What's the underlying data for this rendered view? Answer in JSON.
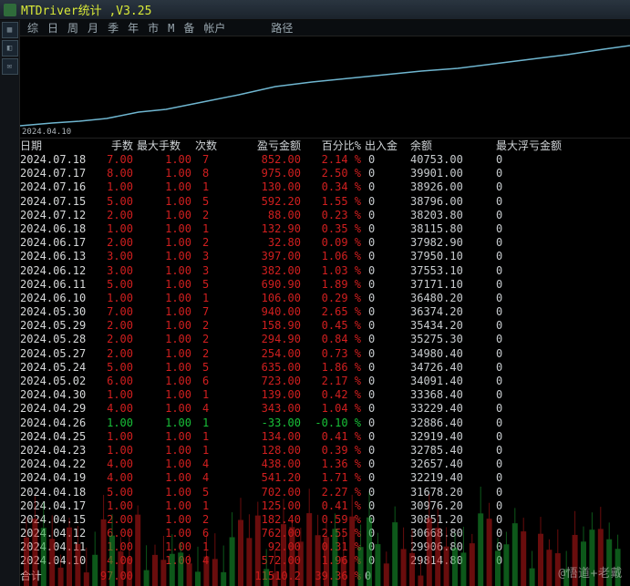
{
  "window": {
    "title": "MTDriver统计 ,V3.25"
  },
  "tabs": [
    "综",
    "日",
    "周",
    "月",
    "季",
    "年",
    "市",
    "M",
    "备",
    "帐户",
    "",
    "",
    "",
    "路径"
  ],
  "chart": {
    "xlabel": "2024.04.10",
    "line_color": "#6fb6d0",
    "line_width": 1.5,
    "background": "#000000",
    "points": [
      [
        0,
        98
      ],
      [
        35,
        95
      ],
      [
        65,
        93
      ],
      [
        95,
        90
      ],
      [
        130,
        83
      ],
      [
        160,
        80
      ],
      [
        200,
        72
      ],
      [
        240,
        64
      ],
      [
        280,
        55
      ],
      [
        320,
        50
      ],
      [
        360,
        46
      ],
      [
        400,
        42
      ],
      [
        440,
        38
      ],
      [
        480,
        35
      ],
      [
        520,
        30
      ],
      [
        560,
        25
      ],
      [
        600,
        20
      ],
      [
        640,
        14
      ],
      [
        669,
        10
      ]
    ]
  },
  "columns": [
    "日期",
    "手数",
    "最大手数",
    "次数",
    "盈亏金额",
    "百分比%",
    "出入金",
    "余额",
    "最大浮亏金额"
  ],
  "colors": {
    "red": "#d11f1f",
    "green": "#18c038",
    "text": "#d6d8d9",
    "bg": "#000000"
  },
  "rows": [
    {
      "date": "2024.07.18",
      "lots": "7.00",
      "maxlots": "1.00",
      "cnt": "7",
      "pl": "852.00",
      "pct": "2.14 %",
      "io": "0",
      "bal": "40753.00",
      "fl": "0",
      "neg": false
    },
    {
      "date": "2024.07.17",
      "lots": "8.00",
      "maxlots": "1.00",
      "cnt": "8",
      "pl": "975.00",
      "pct": "2.50 %",
      "io": "0",
      "bal": "39901.00",
      "fl": "0",
      "neg": false
    },
    {
      "date": "2024.07.16",
      "lots": "1.00",
      "maxlots": "1.00",
      "cnt": "1",
      "pl": "130.00",
      "pct": "0.34 %",
      "io": "0",
      "bal": "38926.00",
      "fl": "0",
      "neg": false
    },
    {
      "date": "2024.07.15",
      "lots": "5.00",
      "maxlots": "1.00",
      "cnt": "5",
      "pl": "592.20",
      "pct": "1.55 %",
      "io": "0",
      "bal": "38796.00",
      "fl": "0",
      "neg": false
    },
    {
      "date": "2024.07.12",
      "lots": "2.00",
      "maxlots": "1.00",
      "cnt": "2",
      "pl": "88.00",
      "pct": "0.23 %",
      "io": "0",
      "bal": "38203.80",
      "fl": "0",
      "neg": false
    },
    {
      "date": "2024.06.18",
      "lots": "1.00",
      "maxlots": "1.00",
      "cnt": "1",
      "pl": "132.90",
      "pct": "0.35 %",
      "io": "0",
      "bal": "38115.80",
      "fl": "0",
      "neg": false
    },
    {
      "date": "2024.06.17",
      "lots": "2.00",
      "maxlots": "1.00",
      "cnt": "2",
      "pl": "32.80",
      "pct": "0.09 %",
      "io": "0",
      "bal": "37982.90",
      "fl": "0",
      "neg": false
    },
    {
      "date": "2024.06.13",
      "lots": "3.00",
      "maxlots": "1.00",
      "cnt": "3",
      "pl": "397.00",
      "pct": "1.06 %",
      "io": "0",
      "bal": "37950.10",
      "fl": "0",
      "neg": false
    },
    {
      "date": "2024.06.12",
      "lots": "3.00",
      "maxlots": "1.00",
      "cnt": "3",
      "pl": "382.00",
      "pct": "1.03 %",
      "io": "0",
      "bal": "37553.10",
      "fl": "0",
      "neg": false
    },
    {
      "date": "2024.06.11",
      "lots": "5.00",
      "maxlots": "1.00",
      "cnt": "5",
      "pl": "690.90",
      "pct": "1.89 %",
      "io": "0",
      "bal": "37171.10",
      "fl": "0",
      "neg": false
    },
    {
      "date": "2024.06.10",
      "lots": "1.00",
      "maxlots": "1.00",
      "cnt": "1",
      "pl": "106.00",
      "pct": "0.29 %",
      "io": "0",
      "bal": "36480.20",
      "fl": "0",
      "neg": false
    },
    {
      "date": "2024.05.30",
      "lots": "7.00",
      "maxlots": "1.00",
      "cnt": "7",
      "pl": "940.00",
      "pct": "2.65 %",
      "io": "0",
      "bal": "36374.20",
      "fl": "0",
      "neg": false
    },
    {
      "date": "2024.05.29",
      "lots": "2.00",
      "maxlots": "1.00",
      "cnt": "2",
      "pl": "158.90",
      "pct": "0.45 %",
      "io": "0",
      "bal": "35434.20",
      "fl": "0",
      "neg": false
    },
    {
      "date": "2024.05.28",
      "lots": "2.00",
      "maxlots": "1.00",
      "cnt": "2",
      "pl": "294.90",
      "pct": "0.84 %",
      "io": "0",
      "bal": "35275.30",
      "fl": "0",
      "neg": false
    },
    {
      "date": "2024.05.27",
      "lots": "2.00",
      "maxlots": "1.00",
      "cnt": "2",
      "pl": "254.00",
      "pct": "0.73 %",
      "io": "0",
      "bal": "34980.40",
      "fl": "0",
      "neg": false
    },
    {
      "date": "2024.05.24",
      "lots": "5.00",
      "maxlots": "1.00",
      "cnt": "5",
      "pl": "635.00",
      "pct": "1.86 %",
      "io": "0",
      "bal": "34726.40",
      "fl": "0",
      "neg": false
    },
    {
      "date": "2024.05.02",
      "lots": "6.00",
      "maxlots": "1.00",
      "cnt": "6",
      "pl": "723.00",
      "pct": "2.17 %",
      "io": "0",
      "bal": "34091.40",
      "fl": "0",
      "neg": false
    },
    {
      "date": "2024.04.30",
      "lots": "1.00",
      "maxlots": "1.00",
      "cnt": "1",
      "pl": "139.00",
      "pct": "0.42 %",
      "io": "0",
      "bal": "33368.40",
      "fl": "0",
      "neg": false
    },
    {
      "date": "2024.04.29",
      "lots": "4.00",
      "maxlots": "1.00",
      "cnt": "4",
      "pl": "343.00",
      "pct": "1.04 %",
      "io": "0",
      "bal": "33229.40",
      "fl": "0",
      "neg": false
    },
    {
      "date": "2024.04.26",
      "lots": "1.00",
      "maxlots": "1.00",
      "cnt": "1",
      "pl": "-33.00",
      "pct": "-0.10 %",
      "io": "0",
      "bal": "32886.40",
      "fl": "0",
      "neg": true
    },
    {
      "date": "2024.04.25",
      "lots": "1.00",
      "maxlots": "1.00",
      "cnt": "1",
      "pl": "134.00",
      "pct": "0.41 %",
      "io": "0",
      "bal": "32919.40",
      "fl": "0",
      "neg": false
    },
    {
      "date": "2024.04.23",
      "lots": "1.00",
      "maxlots": "1.00",
      "cnt": "1",
      "pl": "128.00",
      "pct": "0.39 %",
      "io": "0",
      "bal": "32785.40",
      "fl": "0",
      "neg": false
    },
    {
      "date": "2024.04.22",
      "lots": "4.00",
      "maxlots": "1.00",
      "cnt": "4",
      "pl": "438.00",
      "pct": "1.36 %",
      "io": "0",
      "bal": "32657.40",
      "fl": "0",
      "neg": false
    },
    {
      "date": "2024.04.19",
      "lots": "4.00",
      "maxlots": "1.00",
      "cnt": "4",
      "pl": "541.20",
      "pct": "1.71 %",
      "io": "0",
      "bal": "32219.40",
      "fl": "0",
      "neg": false
    },
    {
      "date": "2024.04.18",
      "lots": "5.00",
      "maxlots": "1.00",
      "cnt": "5",
      "pl": "702.00",
      "pct": "2.27 %",
      "io": "0",
      "bal": "31678.20",
      "fl": "0",
      "neg": false
    },
    {
      "date": "2024.04.17",
      "lots": "1.00",
      "maxlots": "1.00",
      "cnt": "1",
      "pl": "125.00",
      "pct": "0.41 %",
      "io": "0",
      "bal": "30976.20",
      "fl": "0",
      "neg": false
    },
    {
      "date": "2024.04.15",
      "lots": "2.00",
      "maxlots": "1.00",
      "cnt": "2",
      "pl": "182.40",
      "pct": "0.59 %",
      "io": "0",
      "bal": "30851.20",
      "fl": "0",
      "neg": false
    },
    {
      "date": "2024.04.12",
      "lots": "6.00",
      "maxlots": "1.00",
      "cnt": "6",
      "pl": "762.00",
      "pct": "2.55 %",
      "io": "0",
      "bal": "30668.80",
      "fl": "0",
      "neg": false
    },
    {
      "date": "2024.04.11",
      "lots": "1.00",
      "maxlots": "1.00",
      "cnt": "1",
      "pl": "92.00",
      "pct": "0.31 %",
      "io": "0",
      "bal": "29906.80",
      "fl": "0",
      "neg": false
    },
    {
      "date": "2024.04.10",
      "lots": "4.00",
      "maxlots": "1.00",
      "cnt": "4",
      "pl": "572.00",
      "pct": "1.96 %",
      "io": "0",
      "bal": "29814.80",
      "fl": "0",
      "neg": false
    }
  ],
  "footer": {
    "label": "合计",
    "lots": "97.00",
    "pl": "11510.2",
    "pct": "39.36 %",
    "io": "0"
  },
  "watermark": "@悟道+老戴"
}
